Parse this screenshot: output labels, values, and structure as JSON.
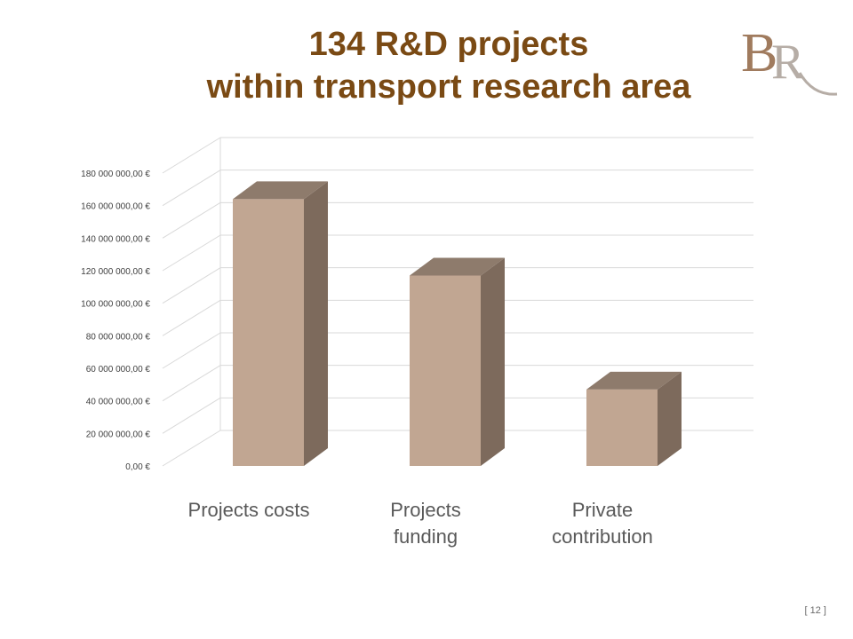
{
  "slide": {
    "title_line1": "134 R&D projects",
    "title_line2": "within transport research area",
    "page_number": "[ 12 ]",
    "logo_text": "BR"
  },
  "colors": {
    "title": "#7a4a14",
    "bar_front": "#c1a692",
    "bar_top": "#8e7b6c",
    "bar_side": "#7d6a5c",
    "grid": "#d9d9d9",
    "logo": "#a07b5e"
  },
  "chart_data": {
    "type": "bar",
    "style": "3d-column",
    "categories": [
      "Projects costs",
      "Projects funding",
      "Private contribution"
    ],
    "category_label_lines": [
      [
        "Projects costs"
      ],
      [
        "Projects",
        "funding"
      ],
      [
        "Private",
        "contribution"
      ]
    ],
    "values": [
      164000000,
      117000000,
      47000000
    ],
    "ylim": [
      0,
      180000000
    ],
    "yticks": [
      0,
      20000000,
      40000000,
      60000000,
      80000000,
      100000000,
      120000000,
      140000000,
      160000000,
      180000000
    ],
    "ytick_labels": [
      "0,00 €",
      "20 000 000,00 €",
      "40 000 000,00 €",
      "60 000 000,00 €",
      "80 000 000,00 €",
      "100 000 000,00 €",
      "120 000 000,00 €",
      "140 000 000,00 €",
      "160 000 000,00 €",
      "180 000 000,00 €"
    ],
    "title": "",
    "xlabel": "",
    "ylabel": "",
    "grid": true,
    "legend": "none"
  }
}
